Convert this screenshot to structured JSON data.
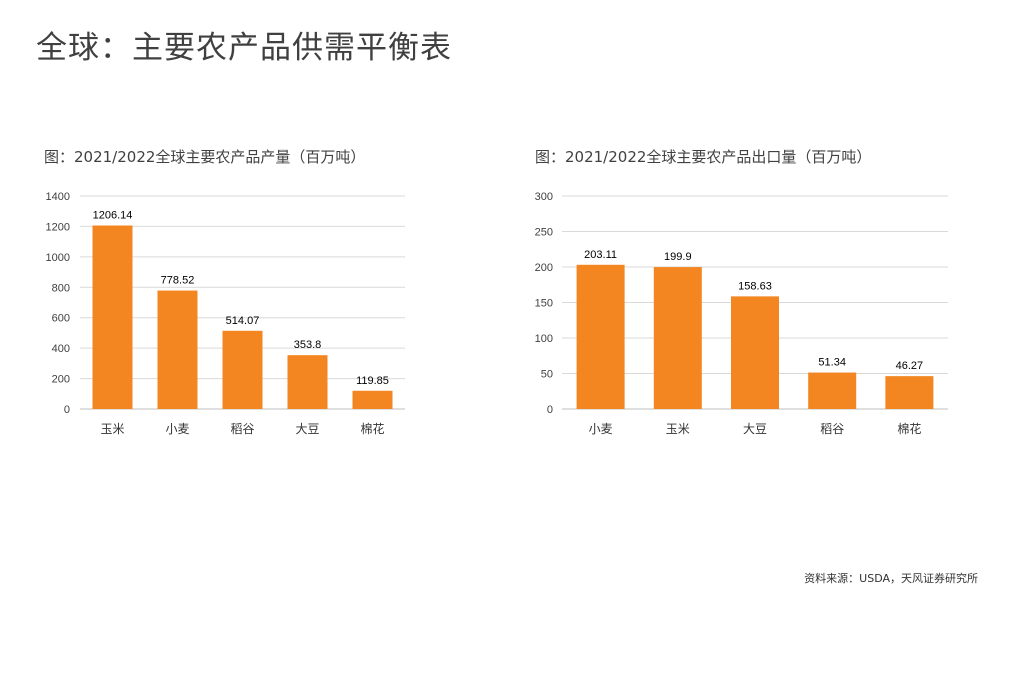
{
  "page": {
    "title": "全球：主要农产品供需平衡表"
  },
  "charts": [
    {
      "title": "图：2021/2022全球主要农产品产量（百万吨）"
    },
    {
      "title": "图：2021/2022全球主要农产品出口量（百万吨）"
    }
  ],
  "source": "资料来源：USDA，天风证券研究所",
  "colors": {
    "bar": "#f38620",
    "grid": "#d9d9d9",
    "axis": "#bfbfbf"
  },
  "chart_data": [
    {
      "type": "bar",
      "title": "图：2021/2022全球主要农产品产量（百万吨）",
      "categories": [
        "玉米",
        "小麦",
        "稻谷",
        "大豆",
        "棉花"
      ],
      "values": [
        1206.14,
        778.52,
        514.07,
        353.8,
        119.85
      ],
      "value_labels": [
        "1206.14",
        "778.52",
        "514.07",
        "353.8",
        "119.85"
      ],
      "ylim": [
        0,
        1400
      ],
      "yticks": [
        "0",
        "200",
        "400",
        "600",
        "800",
        "1000",
        "1200",
        "1400"
      ],
      "grid": true,
      "xlabel": "",
      "ylabel": ""
    },
    {
      "type": "bar",
      "title": "图：2021/2022全球主要农产品出口量（百万吨）",
      "categories": [
        "小麦",
        "玉米",
        "大豆",
        "稻谷",
        "棉花"
      ],
      "values": [
        203.11,
        199.9,
        158.63,
        51.34,
        46.27
      ],
      "value_labels": [
        "203.11",
        "199.9",
        "158.63",
        "51.34",
        "46.27"
      ],
      "ylim": [
        0,
        300
      ],
      "yticks": [
        "0",
        "50",
        "100",
        "150",
        "200",
        "250",
        "300"
      ],
      "grid": true,
      "xlabel": "",
      "ylabel": ""
    }
  ]
}
